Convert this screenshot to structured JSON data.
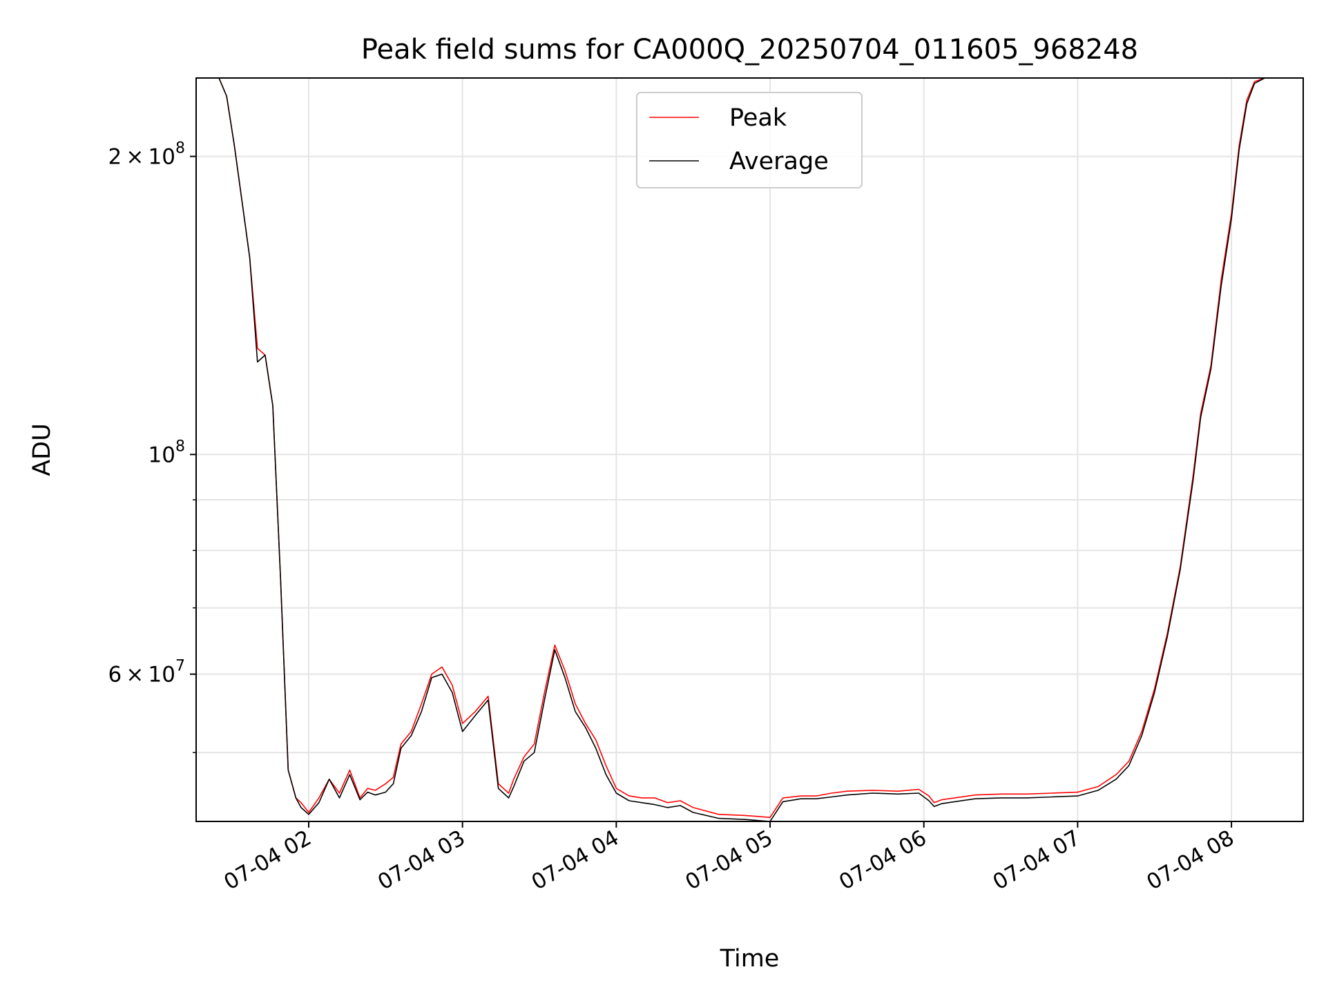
{
  "chart_data": {
    "type": "line",
    "title": "Peak field sums for CA000Q_20250704_011605_968248",
    "xlabel": "Time",
    "ylabel": "ADU",
    "y_scale": "log",
    "ylim": [
      42600000,
      240000000
    ],
    "xlim": [
      "2025-07-04 01:16:05",
      "2025-07-04 08:28:00"
    ],
    "grid": true,
    "legend_position": "upper center",
    "x_ticks": [
      "07-04 02",
      "07-04 03",
      "07-04 04",
      "07-04 05",
      "07-04 06",
      "07-04 07",
      "07-04 08"
    ],
    "y_ticks": [
      {
        "value": 60000000,
        "mantissa": "6",
        "exponent": "7"
      },
      {
        "value": 100000000,
        "mantissa": "",
        "exponent": "8"
      },
      {
        "value": 200000000,
        "mantissa": "2",
        "exponent": "8"
      }
    ],
    "y_minor_ticks": [
      50000000,
      70000000,
      80000000,
      90000000
    ],
    "series": [
      {
        "name": "Peak",
        "color": "#ff0000",
        "x": [
          "2025-07-04 01:16:05",
          "2025-07-04 01:25:00",
          "2025-07-04 01:28:00",
          "2025-07-04 01:31:00",
          "2025-07-04 01:34:00",
          "2025-07-04 01:37:00",
          "2025-07-04 01:40:00",
          "2025-07-04 01:43:00",
          "2025-07-04 01:46:00",
          "2025-07-04 01:49:00",
          "2025-07-04 01:52:00",
          "2025-07-04 01:55:00",
          "2025-07-04 01:57:00",
          "2025-07-04 02:00:00",
          "2025-07-04 02:04:00",
          "2025-07-04 02:08:00",
          "2025-07-04 02:12:00",
          "2025-07-04 02:16:00",
          "2025-07-04 02:20:00",
          "2025-07-04 02:23:00",
          "2025-07-04 02:26:00",
          "2025-07-04 02:30:00",
          "2025-07-04 02:33:00",
          "2025-07-04 02:36:00",
          "2025-07-04 02:40:00",
          "2025-07-04 02:44:00",
          "2025-07-04 02:48:00",
          "2025-07-04 02:52:00",
          "2025-07-04 02:56:00",
          "2025-07-04 03:00:00",
          "2025-07-04 03:05:00",
          "2025-07-04 03:10:00",
          "2025-07-04 03:14:00",
          "2025-07-04 03:18:00",
          "2025-07-04 03:20:00",
          "2025-07-04 03:24:00",
          "2025-07-04 03:28:00",
          "2025-07-04 03:32:00",
          "2025-07-04 03:36:00",
          "2025-07-04 03:40:00",
          "2025-07-04 03:44:00",
          "2025-07-04 03:48:00",
          "2025-07-04 03:52:00",
          "2025-07-04 03:56:00",
          "2025-07-04 04:00:00",
          "2025-07-04 04:05:00",
          "2025-07-04 04:10:00",
          "2025-07-04 04:15:00",
          "2025-07-04 04:20:00",
          "2025-07-04 04:25:00",
          "2025-07-04 04:30:00",
          "2025-07-04 04:40:00",
          "2025-07-04 04:50:00",
          "2025-07-04 05:00:00",
          "2025-07-04 05:05:00",
          "2025-07-04 05:12:00",
          "2025-07-04 05:18:00",
          "2025-07-04 05:24:00",
          "2025-07-04 05:30:00",
          "2025-07-04 05:40:00",
          "2025-07-04 05:50:00",
          "2025-07-04 05:58:00",
          "2025-07-04 06:02:00",
          "2025-07-04 06:04:00",
          "2025-07-04 06:07:00",
          "2025-07-04 06:12:00",
          "2025-07-04 06:20:00",
          "2025-07-04 06:30:00",
          "2025-07-04 06:40:00",
          "2025-07-04 06:50:00",
          "2025-07-04 07:00:00",
          "2025-07-04 07:08:00",
          "2025-07-04 07:15:00",
          "2025-07-04 07:20:00",
          "2025-07-04 07:25:00",
          "2025-07-04 07:30:00",
          "2025-07-04 07:35:00",
          "2025-07-04 07:40:00",
          "2025-07-04 07:45:00",
          "2025-07-04 07:48:00",
          "2025-07-04 07:52:00",
          "2025-07-04 07:56:00",
          "2025-07-04 08:00:00",
          "2025-07-04 08:03:00",
          "2025-07-04 08:06:00",
          "2025-07-04 08:09:00",
          "2025-07-04 08:13:00",
          "2025-07-04 08:28:00"
        ],
        "values": [
          240000000,
          240000000,
          230000000,
          205000000,
          180000000,
          158000000,
          128000000,
          126000000,
          112000000,
          75000000,
          48000000,
          45000000,
          44500000,
          43500000,
          45000000,
          47000000,
          45500000,
          48000000,
          45000000,
          46000000,
          45800000,
          46500000,
          47200000,
          51000000,
          52500000,
          56000000,
          60000000,
          61000000,
          58500000,
          53500000,
          55000000,
          57000000,
          46500000,
          45500000,
          47000000,
          49500000,
          51000000,
          57500000,
          64200000,
          60500000,
          56000000,
          53500000,
          51500000,
          48500000,
          46000000,
          45200000,
          45000000,
          45000000,
          44500000,
          44700000,
          44000000,
          43300000,
          43200000,
          43000000,
          45000000,
          45200000,
          45200000,
          45500000,
          45700000,
          45800000,
          45700000,
          45900000,
          45200000,
          44500000,
          44800000,
          45000000,
          45300000,
          45400000,
          45400000,
          45500000,
          45600000,
          46200000,
          47500000,
          49000000,
          52500000,
          58000000,
          66000000,
          77000000,
          95000000,
          110000000,
          123000000,
          150000000,
          175000000,
          205000000,
          228000000,
          238000000,
          240000000,
          240000000
        ]
      },
      {
        "name": "Average",
        "color": "#000000",
        "x": [
          "2025-07-04 01:16:05",
          "2025-07-04 01:25:00",
          "2025-07-04 01:28:00",
          "2025-07-04 01:31:00",
          "2025-07-04 01:34:00",
          "2025-07-04 01:37:00",
          "2025-07-04 01:40:00",
          "2025-07-04 01:43:00",
          "2025-07-04 01:46:00",
          "2025-07-04 01:49:00",
          "2025-07-04 01:52:00",
          "2025-07-04 01:55:00",
          "2025-07-04 01:57:00",
          "2025-07-04 02:00:00",
          "2025-07-04 02:04:00",
          "2025-07-04 02:08:00",
          "2025-07-04 02:12:00",
          "2025-07-04 02:16:00",
          "2025-07-04 02:20:00",
          "2025-07-04 02:23:00",
          "2025-07-04 02:26:00",
          "2025-07-04 02:30:00",
          "2025-07-04 02:33:00",
          "2025-07-04 02:36:00",
          "2025-07-04 02:40:00",
          "2025-07-04 02:44:00",
          "2025-07-04 02:48:00",
          "2025-07-04 02:52:00",
          "2025-07-04 02:56:00",
          "2025-07-04 03:00:00",
          "2025-07-04 03:05:00",
          "2025-07-04 03:10:00",
          "2025-07-04 03:14:00",
          "2025-07-04 03:18:00",
          "2025-07-04 03:20:00",
          "2025-07-04 03:24:00",
          "2025-07-04 03:28:00",
          "2025-07-04 03:32:00",
          "2025-07-04 03:36:00",
          "2025-07-04 03:40:00",
          "2025-07-04 03:44:00",
          "2025-07-04 03:48:00",
          "2025-07-04 03:52:00",
          "2025-07-04 03:56:00",
          "2025-07-04 04:00:00",
          "2025-07-04 04:05:00",
          "2025-07-04 04:10:00",
          "2025-07-04 04:15:00",
          "2025-07-04 04:20:00",
          "2025-07-04 04:25:00",
          "2025-07-04 04:30:00",
          "2025-07-04 04:40:00",
          "2025-07-04 04:50:00",
          "2025-07-04 05:00:00",
          "2025-07-04 05:05:00",
          "2025-07-04 05:12:00",
          "2025-07-04 05:18:00",
          "2025-07-04 05:24:00",
          "2025-07-04 05:30:00",
          "2025-07-04 05:40:00",
          "2025-07-04 05:50:00",
          "2025-07-04 05:58:00",
          "2025-07-04 06:02:00",
          "2025-07-04 06:04:00",
          "2025-07-04 06:07:00",
          "2025-07-04 06:12:00",
          "2025-07-04 06:20:00",
          "2025-07-04 06:30:00",
          "2025-07-04 06:40:00",
          "2025-07-04 06:50:00",
          "2025-07-04 07:00:00",
          "2025-07-04 07:08:00",
          "2025-07-04 07:15:00",
          "2025-07-04 07:20:00",
          "2025-07-04 07:25:00",
          "2025-07-04 07:30:00",
          "2025-07-04 07:35:00",
          "2025-07-04 07:40:00",
          "2025-07-04 07:45:00",
          "2025-07-04 07:48:00",
          "2025-07-04 07:52:00",
          "2025-07-04 07:56:00",
          "2025-07-04 08:00:00",
          "2025-07-04 08:03:00",
          "2025-07-04 08:06:00",
          "2025-07-04 08:09:00",
          "2025-07-04 08:13:00",
          "2025-07-04 08:28:00"
        ],
        "values": [
          240000000,
          240000000,
          230000000,
          205000000,
          180000000,
          158000000,
          124000000,
          126000000,
          112000000,
          75000000,
          48000000,
          45000000,
          44000000,
          43300000,
          44500000,
          47000000,
          45000000,
          47500000,
          44800000,
          45600000,
          45300000,
          45600000,
          46500000,
          50500000,
          52000000,
          55000000,
          59500000,
          60000000,
          57500000,
          52500000,
          54500000,
          56500000,
          46000000,
          45000000,
          46200000,
          49000000,
          50000000,
          56500000,
          63500000,
          59500000,
          55000000,
          53000000,
          50500000,
          47500000,
          45500000,
          44700000,
          44500000,
          44300000,
          44000000,
          44200000,
          43500000,
          42900000,
          42800000,
          42600000,
          44600000,
          44900000,
          44900000,
          45100000,
          45300000,
          45500000,
          45400000,
          45500000,
          44700000,
          44100000,
          44400000,
          44600000,
          44900000,
          45000000,
          45000000,
          45100000,
          45200000,
          45800000,
          47000000,
          48500000,
          52000000,
          57500000,
          65500000,
          76500000,
          94000000,
          109000000,
          122000000,
          148000000,
          173000000,
          203000000,
          226000000,
          237000000,
          240000000,
          240000000
        ]
      }
    ]
  }
}
